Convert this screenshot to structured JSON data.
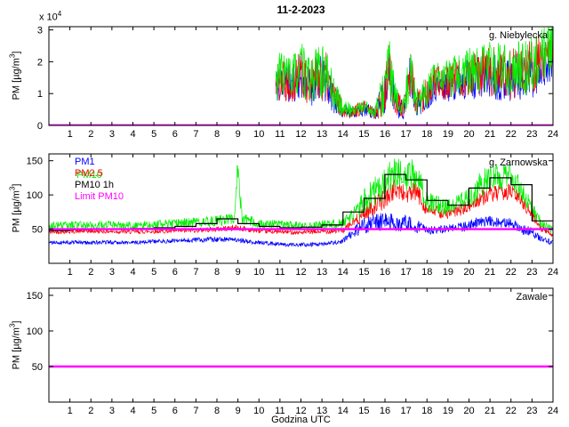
{
  "figure": {
    "title": "11-2-2023",
    "xlabel": "Godzina UTC"
  },
  "labels": {
    "ylabel": {
      "pre": "PM [µg/m",
      "sup": "3",
      "post": "]"
    },
    "exponent": {
      "pre": "x 10",
      "sup": "4"
    }
  },
  "colors": {
    "pm1": "#0000ff",
    "pm25": "#ff0000",
    "pm10": "#00ee00",
    "pm10_1h": "#000000",
    "limit": "#ff00ff"
  },
  "legend": {
    "pm1": "PM1",
    "pm25": "PM2.5",
    "pm10": "PM10",
    "pm10_1h": "PM10 1h",
    "limit": "Limit PM10"
  },
  "chart_data": [
    {
      "type": "line",
      "station": "g. Niebylecka",
      "ylabel": "PM [ug/m3]",
      "y_multiplier": "x 10^4",
      "xlim": [
        0,
        24
      ],
      "ylim": [
        0,
        31000
      ],
      "xticks": [
        1,
        2,
        3,
        4,
        5,
        6,
        7,
        8,
        9,
        10,
        11,
        12,
        13,
        14,
        15,
        16,
        17,
        18,
        19,
        20,
        21,
        22,
        23,
        24
      ],
      "yticks": [
        {
          "v": 0,
          "label": "0"
        },
        {
          "v": 10000,
          "label": "1"
        },
        {
          "v": 20000,
          "label": "2"
        },
        {
          "v": 30000,
          "label": "3"
        }
      ],
      "base_anchors": {
        "x": [
          10.8,
          11.1,
          11.5,
          12.0,
          12.4,
          12.8,
          13.2,
          13.6,
          14.0,
          14.5,
          15.0,
          15.5,
          15.9,
          16.2,
          16.5,
          16.9,
          17.2,
          17.5,
          18.0,
          18.3,
          19.0,
          20.0,
          21.0,
          22.0,
          23.0,
          23.5,
          24.0
        ],
        "mean": [
          13000,
          16000,
          14000,
          17000,
          13000,
          16000,
          15000,
          9000,
          5000,
          4500,
          5500,
          4000,
          9000,
          18000,
          7000,
          5000,
          17000,
          7000,
          10000,
          13000,
          14000,
          16000,
          17000,
          16000,
          18000,
          21000,
          22000
        ],
        "amp": [
          6000,
          8000,
          7000,
          8000,
          7000,
          8000,
          8000,
          5000,
          2500,
          2000,
          2500,
          2000,
          7000,
          9000,
          5000,
          3000,
          9000,
          4000,
          5000,
          5000,
          6000,
          7000,
          8000,
          8000,
          9000,
          8000,
          8000
        ]
      },
      "series": [
        {
          "name": "PM1",
          "color_key": "pm1",
          "type": "noisy",
          "seed": 11,
          "scale": 0.92,
          "x_start": 10.8
        },
        {
          "name": "PM2.5",
          "color_key": "pm25",
          "type": "noisy",
          "seed": 22,
          "scale": 1.0,
          "x_start": 10.8
        },
        {
          "name": "PM10",
          "color_key": "pm10",
          "type": "noisy",
          "seed": 33,
          "scale": 1.06,
          "x_start": 10.8
        },
        {
          "name": "Limit PM10",
          "color_key": "limit",
          "type": "hline",
          "y": 50,
          "width": 2.4
        }
      ]
    },
    {
      "type": "line",
      "station": "g. Zarnowska",
      "ylabel": "PM [ug/m3]",
      "xlim": [
        0,
        24
      ],
      "ylim": [
        0,
        160
      ],
      "xticks": [
        1,
        2,
        3,
        4,
        5,
        6,
        7,
        8,
        9,
        10,
        11,
        12,
        13,
        14,
        15,
        16,
        17,
        18,
        19,
        20,
        21,
        22,
        23,
        24
      ],
      "yticks": [
        {
          "v": 50,
          "label": "50"
        },
        {
          "v": 100,
          "label": "100"
        },
        {
          "v": 150,
          "label": "150"
        }
      ],
      "series": [
        {
          "name": "PM1",
          "color_key": "pm1",
          "type": "noisy",
          "seed": 41,
          "anchors": {
            "x": [
              0,
              1,
              2,
              3,
              4,
              5,
              6,
              7,
              8,
              9,
              10,
              11,
              12,
              13,
              14,
              14.5,
              15,
              15.5,
              16,
              16.5,
              17,
              17.5,
              18,
              19,
              20,
              20.5,
              21,
              22,
              22.5,
              23,
              23.5,
              24
            ],
            "mean": [
              30,
              31,
              30,
              31,
              30,
              32,
              33,
              34,
              35,
              34,
              30,
              28,
              27,
              28,
              32,
              45,
              55,
              60,
              62,
              58,
              60,
              55,
              48,
              50,
              55,
              60,
              62,
              58,
              50,
              45,
              35,
              30
            ],
            "amp": [
              3,
              3,
              3,
              3,
              3,
              3,
              3,
              4,
              4,
              4,
              3,
              3,
              3,
              3,
              4,
              8,
              12,
              15,
              15,
              12,
              12,
              10,
              6,
              6,
              8,
              8,
              8,
              8,
              8,
              8,
              5,
              4
            ]
          }
        },
        {
          "name": "PM2.5",
          "color_key": "pm25",
          "type": "noisy",
          "seed": 42,
          "anchors": {
            "x": [
              0,
              2,
              4,
              6,
              8,
              9,
              10,
              12,
              14,
              14.5,
              15,
              15.5,
              16,
              16.5,
              17,
              17.5,
              18,
              19,
              20,
              20.5,
              21,
              22,
              22.5,
              23,
              23.5,
              24
            ],
            "mean": [
              46,
              47,
              46,
              47,
              50,
              52,
              47,
              45,
              48,
              60,
              72,
              85,
              95,
              110,
              100,
              105,
              78,
              72,
              82,
              95,
              100,
              105,
              92,
              72,
              50,
              42
            ],
            "amp": [
              3,
              3,
              3,
              3,
              4,
              5,
              3,
              3,
              4,
              8,
              10,
              14,
              15,
              15,
              14,
              15,
              10,
              8,
              10,
              12,
              12,
              12,
              10,
              10,
              6,
              5
            ]
          }
        },
        {
          "name": "PM10",
          "color_key": "pm10",
          "type": "noisy",
          "seed": 43,
          "anchors": {
            "x": [
              0,
              2,
              4,
              6,
              8,
              8.8,
              9.0,
              9.2,
              10,
              12,
              14,
              14.5,
              15,
              15.5,
              16,
              16.5,
              17,
              17.5,
              18,
              19,
              20,
              20.5,
              21,
              22,
              22.5,
              23,
              23.5,
              24
            ],
            "mean": [
              55,
              56,
              55,
              58,
              62,
              65,
              135,
              65,
              58,
              55,
              58,
              70,
              90,
              105,
              115,
              135,
              125,
              130,
              90,
              82,
              95,
              115,
              125,
              130,
              105,
              80,
              55,
              48
            ],
            "amp": [
              6,
              6,
              6,
              7,
              8,
              8,
              25,
              8,
              7,
              6,
              7,
              12,
              18,
              22,
              25,
              25,
              25,
              25,
              15,
              12,
              15,
              20,
              20,
              20,
              15,
              12,
              8,
              6
            ]
          }
        },
        {
          "name": "PM10 1h",
          "color_key": "pm10_1h",
          "type": "step",
          "x0": 0,
          "dx": 1,
          "width": 1.2,
          "values": [
            48,
            49,
            50,
            50,
            51,
            52,
            54,
            58,
            65,
            58,
            54,
            52,
            53,
            56,
            75,
            95,
            130,
            122,
            92,
            85,
            110,
            125,
            115,
            62
          ]
        },
        {
          "name": "Limit PM10",
          "color_key": "limit",
          "type": "hline",
          "y": 50,
          "width": 2.4
        }
      ]
    },
    {
      "type": "line",
      "station": "Zawale",
      "ylabel": "PM [ug/m3]",
      "xlim": [
        0,
        24
      ],
      "ylim": [
        0,
        160
      ],
      "xticks": [
        1,
        2,
        3,
        4,
        5,
        6,
        7,
        8,
        9,
        10,
        11,
        12,
        13,
        14,
        15,
        16,
        17,
        18,
        19,
        20,
        21,
        22,
        23,
        24
      ],
      "yticks": [
        {
          "v": 50,
          "label": "50"
        },
        {
          "v": 100,
          "label": "100"
        },
        {
          "v": 150,
          "label": "150"
        }
      ],
      "series": [
        {
          "name": "Limit PM10",
          "color_key": "limit",
          "type": "hline",
          "y": 50,
          "width": 2.4
        }
      ]
    }
  ]
}
